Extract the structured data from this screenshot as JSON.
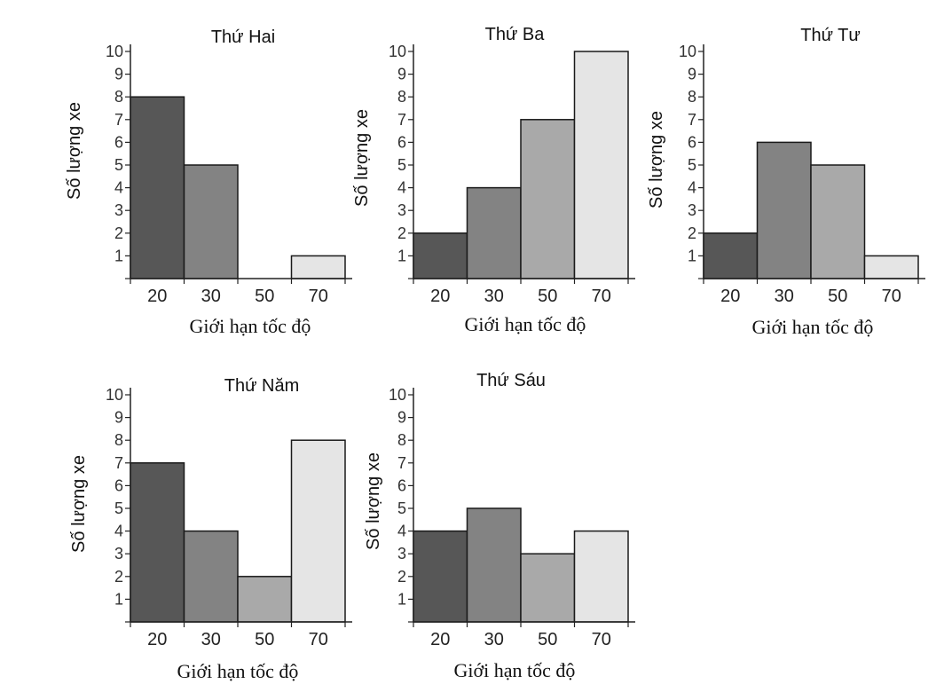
{
  "chart_data": [
    {
      "type": "bar",
      "title": "Thứ Hai",
      "xlabel": "Giới hạn tốc độ",
      "ylabel": "Số lượng xe",
      "categories": [
        "20",
        "30",
        "50",
        "70"
      ],
      "values": [
        8,
        5,
        0,
        1
      ],
      "ylim": [
        0,
        10
      ],
      "yticks": [
        "1",
        "2",
        "3",
        "4",
        "5",
        "6",
        "7",
        "8",
        "9",
        "10"
      ],
      "grid": false
    },
    {
      "type": "bar",
      "title": "Thứ Ba",
      "xlabel": "Giới hạn tốc độ",
      "ylabel": "Số lượng xe",
      "categories": [
        "20",
        "30",
        "50",
        "70"
      ],
      "values": [
        2,
        4,
        7,
        10
      ],
      "ylim": [
        0,
        10
      ],
      "yticks": [
        "1",
        "2",
        "3",
        "4",
        "5",
        "6",
        "7",
        "8",
        "9",
        "10"
      ],
      "grid": false
    },
    {
      "type": "bar",
      "title": "Thứ Tư",
      "xlabel": "Giới hạn tốc độ",
      "ylabel": "Số lượng xe",
      "categories": [
        "20",
        "30",
        "50",
        "70"
      ],
      "values": [
        2,
        6,
        5,
        1
      ],
      "ylim": [
        0,
        10
      ],
      "yticks": [
        "1",
        "2",
        "3",
        "4",
        "5",
        "6",
        "7",
        "8",
        "9",
        "10"
      ],
      "grid": false
    },
    {
      "type": "bar",
      "title": "Thứ Năm",
      "xlabel": "Giới hạn tốc độ",
      "ylabel": "Số lượng xe",
      "categories": [
        "20",
        "30",
        "50",
        "70"
      ],
      "values": [
        7,
        4,
        2,
        8
      ],
      "ylim": [
        0,
        10
      ],
      "yticks": [
        "1",
        "2",
        "3",
        "4",
        "5",
        "6",
        "7",
        "8",
        "9",
        "10"
      ],
      "grid": false
    },
    {
      "type": "bar",
      "title": "Thứ Sáu",
      "xlabel": "Giới hạn tốc độ",
      "ylabel": "Số lượng xe",
      "categories": [
        "20",
        "30",
        "50",
        "70"
      ],
      "values": [
        4,
        5,
        3,
        4
      ],
      "ylim": [
        0,
        10
      ],
      "yticks": [
        "1",
        "2",
        "3",
        "4",
        "5",
        "6",
        "7",
        "8",
        "9",
        "10"
      ],
      "grid": false
    }
  ],
  "colors": {
    "bar_fills": [
      "#575757",
      "#838383",
      "#a9a9a9",
      "#e5e5e5"
    ],
    "bar_stroke": "#1a1a1a",
    "axis": "#222222",
    "background": "#ffffff"
  }
}
